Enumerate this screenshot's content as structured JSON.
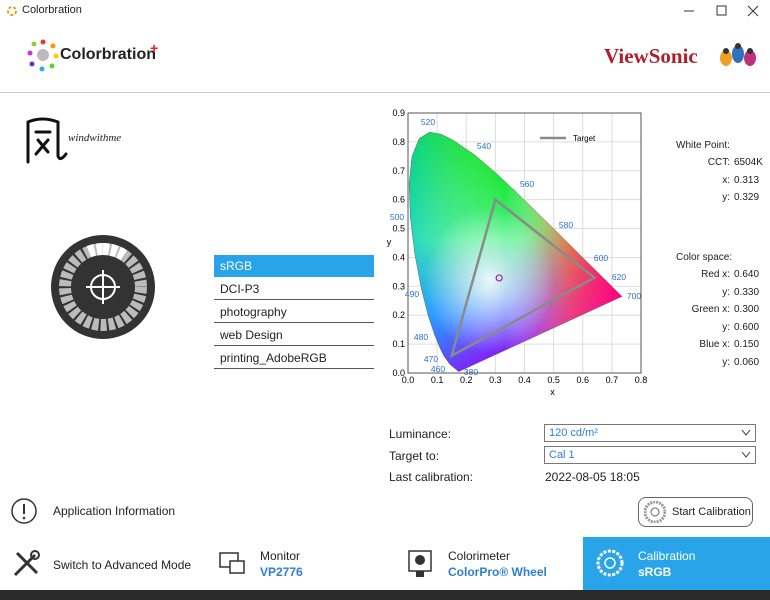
{
  "window": {
    "title": "Colorbration"
  },
  "header": {
    "logo": "Colorbration",
    "logo_plus": "+",
    "brand": "ViewSonic"
  },
  "signature": "windwithme",
  "profiles": {
    "items": [
      "sRGB",
      "DCI-P3",
      "photography",
      "web Design",
      "printing_AdobeRGB"
    ],
    "selected": 0
  },
  "chart_data": {
    "type": "cie",
    "xlabel": "x",
    "ylabel": "y",
    "xlim": [
      0,
      0.8
    ],
    "ylim": [
      0,
      0.9
    ],
    "xticks": [
      {
        "value": 0,
        "label": "0.0"
      },
      0.1,
      0.2,
      0.3,
      0.4,
      0.5,
      0.6,
      0.7,
      0.8
    ],
    "yticks": [
      {
        "value": 0,
        "label": "0.0"
      },
      0.1,
      0.2,
      0.3,
      0.4,
      0.5,
      0.6,
      0.7,
      0.8,
      0.9
    ],
    "wavelengths": [
      520,
      540,
      560,
      580,
      600,
      620,
      700,
      500,
      490,
      480,
      470,
      460,
      380
    ],
    "legend": "Target",
    "target_color": "#8a8a8a",
    "white_point_color": "#a020a0",
    "grid": true
  },
  "white_point": {
    "title": "White Point:",
    "rows": [
      {
        "label": "CCT:",
        "value": "6504K"
      },
      {
        "label": "x:",
        "value": {
          "value": 0.313,
          "label": "0.313"
        }
      },
      {
        "label": "y:",
        "value": {
          "value": 0.329,
          "label": "0.329"
        }
      }
    ]
  },
  "color_space": {
    "title": "Color space:",
    "rows": [
      {
        "label": "Red x:",
        "value": {
          "value": 0.64,
          "label": "0.640"
        }
      },
      {
        "label": "y:",
        "value": {
          "value": 0.33,
          "label": "0.330"
        }
      },
      {
        "label": "Green x:",
        "value": {
          "value": 0.3,
          "label": "0.300"
        }
      },
      {
        "label": "y:",
        "value": {
          "value": 0.6,
          "label": "0.600"
        }
      },
      {
        "label": "Blue x:",
        "value": {
          "value": 0.15,
          "label": "0.150"
        }
      },
      {
        "label": "y:",
        "value": {
          "value": 0.06,
          "label": "0.060"
        }
      }
    ]
  },
  "form": {
    "luminance_label": "Luminance:",
    "luminance": "120 cd/m²",
    "target_label": "Target to:",
    "target": "Cal 1",
    "last_label": "Last calibration:",
    "last": "2022-08-05 18:05"
  },
  "actions": {
    "app_info": "Application Information",
    "start": "Start Calibration",
    "advanced": "Switch to Advanced Mode"
  },
  "tabs": {
    "items": [
      {
        "title": "Monitor",
        "value": "VP2776"
      },
      {
        "title": "Colorimeter",
        "value": "ColorPro® Wheel"
      },
      {
        "title": "Calibration",
        "value": "sRGB"
      }
    ],
    "active": 2
  }
}
